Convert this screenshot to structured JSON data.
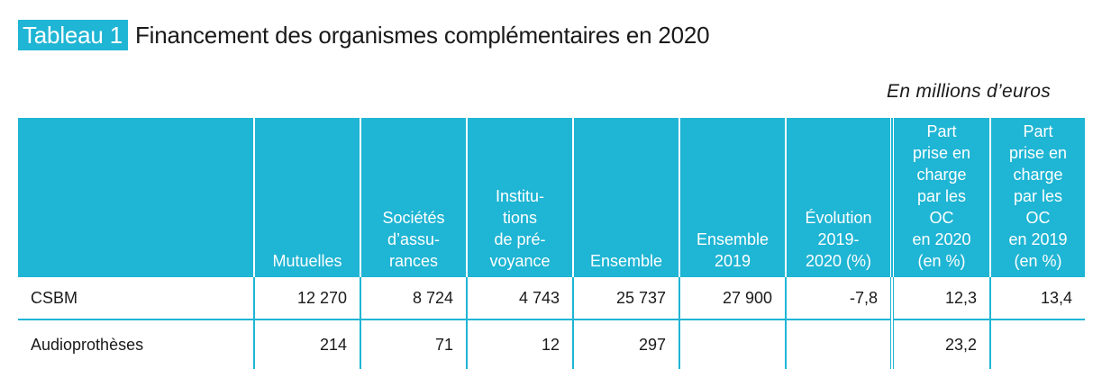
{
  "title": {
    "tag": "Tableau 1",
    "text": "Financement des organismes complémentaires en 2020"
  },
  "unit_note": "En millions d’euros",
  "table": {
    "headers": [
      "",
      "Mutuelles",
      "Sociétés\nd’assu-\nrances",
      "Institu-\ntions\nde pré-\nvoyance",
      "Ensemble",
      "Ensemble\n2019",
      "Évolution\n2019-\n2020 (%)",
      "Part\nprise en\ncharge\npar les\nOC\nen 2020\n(en %)",
      "Part\nprise en\ncharge\npar les\nOC\nen 2019\n(en %)"
    ],
    "rows": [
      [
        "CSBM",
        "12 270",
        "8 724",
        "4 743",
        "25 737",
        "27 900",
        "-7,8",
        "12,3",
        "13,4"
      ],
      [
        "Audioprothèses",
        "214",
        "71",
        "12",
        "297",
        "",
        "",
        "23,2",
        ""
      ]
    ]
  }
}
